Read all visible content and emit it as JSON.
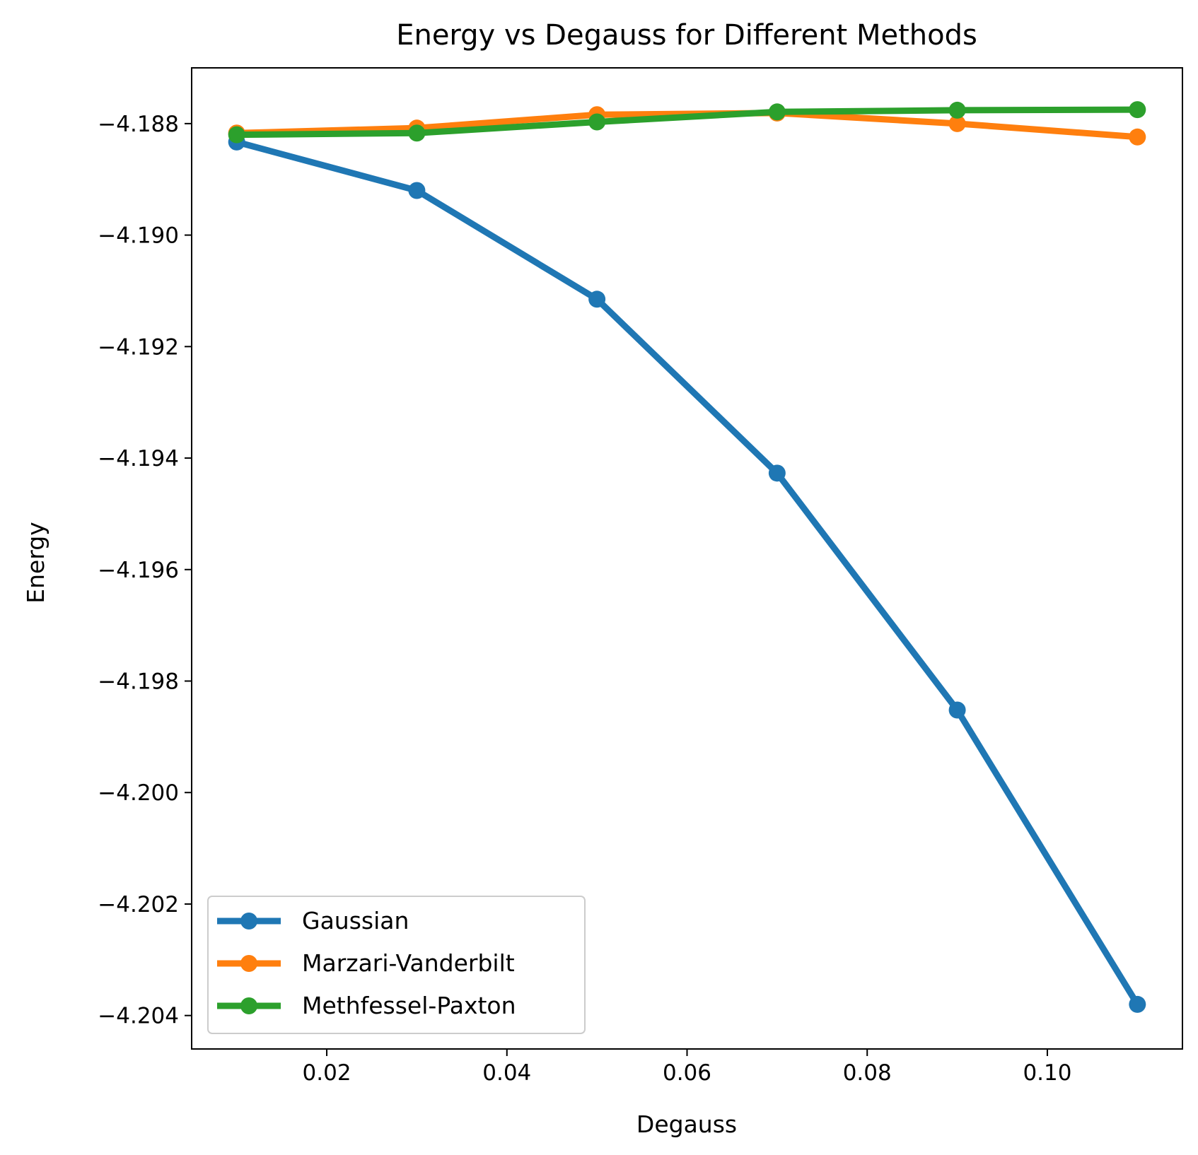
{
  "chart_data": {
    "type": "line",
    "title": "Energy vs Degauss for Different Methods",
    "xlabel": "Degauss",
    "ylabel": "Energy",
    "x": [
      0.01,
      0.03,
      0.05,
      0.07,
      0.09,
      0.11
    ],
    "xlim": [
      0.005,
      0.115
    ],
    "ylim": [
      -4.2046,
      -4.187
    ],
    "xticks": [
      0.02,
      0.04,
      0.06,
      0.08,
      0.1
    ],
    "xtick_labels": [
      "0.02",
      "0.04",
      "0.06",
      "0.08",
      "0.10"
    ],
    "yticks": [
      -4.188,
      -4.19,
      -4.192,
      -4.194,
      -4.196,
      -4.198,
      -4.2,
      -4.202,
      -4.204
    ],
    "ytick_labels": [
      "−4.188",
      "−4.190",
      "−4.192",
      "−4.194",
      "−4.196",
      "−4.198",
      "−4.200",
      "−4.202",
      "−4.204"
    ],
    "grid": false,
    "legend_position": "lower-left",
    "series": [
      {
        "name": "Gaussian",
        "color": "#1f77b4",
        "values": [
          -4.18833,
          -4.1892,
          -4.19115,
          -4.19427,
          -4.19852,
          -4.2038
        ]
      },
      {
        "name": "Marzari-Vanderbilt",
        "color": "#ff7f0e",
        "values": [
          -4.18817,
          -4.18808,
          -4.18784,
          -4.18781,
          -4.188,
          -4.18824
        ]
      },
      {
        "name": "Methfessel-Paxton",
        "color": "#2ca02c",
        "values": [
          -4.1882,
          -4.18817,
          -4.18797,
          -4.18779,
          -4.18776,
          -4.18775
        ]
      }
    ]
  }
}
